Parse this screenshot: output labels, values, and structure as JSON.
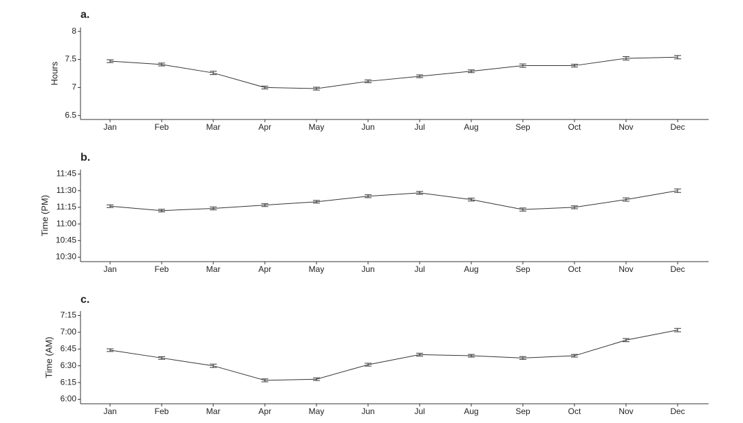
{
  "chart_data": [
    {
      "type": "line",
      "title": "a.",
      "y_label": "Hours",
      "color": "#333333",
      "categories": [
        "Jan",
        "Feb",
        "Mar",
        "Apr",
        "May",
        "Jun",
        "Jul",
        "Aug",
        "Sep",
        "Oct",
        "Nov",
        "Dec"
      ],
      "values": [
        7.47,
        7.41,
        7.26,
        7.0,
        6.98,
        7.11,
        7.2,
        7.29,
        7.39,
        7.39,
        7.52,
        7.54
      ],
      "errors": [
        0.025,
        0.025,
        0.03,
        0.025,
        0.025,
        0.025,
        0.025,
        0.025,
        0.03,
        0.025,
        0.03,
        0.03
      ],
      "ylim": [
        6.43,
        8.07
      ],
      "yticks": [
        6.5,
        7.0,
        7.5,
        8.0
      ]
    },
    {
      "type": "line",
      "title": "b.",
      "y_label": "Time (PM)",
      "color": "#333333",
      "categories": [
        "Jan",
        "Feb",
        "Mar",
        "Apr",
        "May",
        "Jun",
        "Jul",
        "Aug",
        "Sep",
        "Oct",
        "Nov",
        "Dec"
      ],
      "values": [
        1396,
        1392,
        1394,
        1397,
        1400,
        1405,
        1408,
        1402,
        1393,
        1395,
        1402,
        1410
      ],
      "errors": [
        1.2,
        1.2,
        1.3,
        1.3,
        1.2,
        1.3,
        1.3,
        1.3,
        1.4,
        1.3,
        1.5,
        1.6
      ],
      "ylim": [
        1346,
        1429
      ],
      "yticks": [
        {
          "value": 1350,
          "label": "10:30"
        },
        {
          "value": 1365,
          "label": "10:45"
        },
        {
          "value": 1380,
          "label": "11:00"
        },
        {
          "value": 1395,
          "label": "11:15"
        },
        {
          "value": 1410,
          "label": "11:30"
        },
        {
          "value": 1425,
          "label": "11:45"
        }
      ]
    },
    {
      "type": "line",
      "title": "c.",
      "y_label": "Time (AM)",
      "color": "#333333",
      "categories": [
        "Jan",
        "Feb",
        "Mar",
        "Apr",
        "May",
        "Jun",
        "Jul",
        "Aug",
        "Sep",
        "Oct",
        "Nov",
        "Dec"
      ],
      "values": [
        404,
        397,
        390,
        377,
        378,
        391,
        400,
        399,
        397,
        399,
        413,
        422
      ],
      "errors": [
        1.2,
        1.2,
        1.5,
        1.3,
        1.2,
        1.3,
        1.3,
        1.2,
        1.3,
        1.2,
        1.4,
        1.5
      ],
      "ylim": [
        356,
        439
      ],
      "yticks": [
        {
          "value": 360,
          "label": "6:00"
        },
        {
          "value": 375,
          "label": "6:15"
        },
        {
          "value": 390,
          "label": "6:30"
        },
        {
          "value": 405,
          "label": "6:45"
        },
        {
          "value": 420,
          "label": "7:00"
        },
        {
          "value": 435,
          "label": "7:15"
        }
      ]
    }
  ]
}
